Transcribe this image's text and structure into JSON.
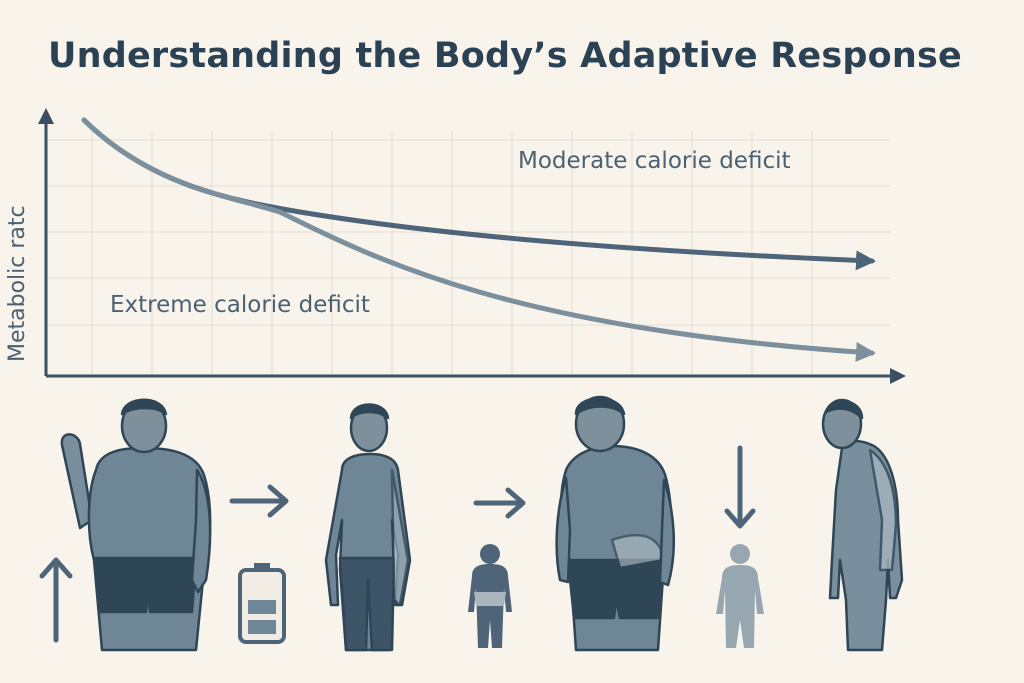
{
  "title": "Understanding the Body’s Adaptive Response",
  "chart": {
    "ylabel": "Metabolic ratc",
    "curves": [
      {
        "name": "Moderate calorie deficit"
      },
      {
        "name": "Extreme calorie deficit"
      }
    ]
  },
  "icons": [
    "raised-hand-person-icon",
    "arrow-right-icon",
    "thin-person-icon",
    "arrow-right-icon",
    "tired-heavy-person-icon",
    "arrow-down-icon",
    "hunched-person-icon",
    "arrow-up-icon",
    "battery-low-icon",
    "small-person-icon",
    "faded-small-person-icon"
  ],
  "colors": {
    "background": "#f8f4ec",
    "ink": "#2b4254",
    "moderate_line": "#4e6478",
    "extreme_line": "#7c8f9c",
    "figure_fill": "#6f8696",
    "shorts": "#2f4657"
  }
}
